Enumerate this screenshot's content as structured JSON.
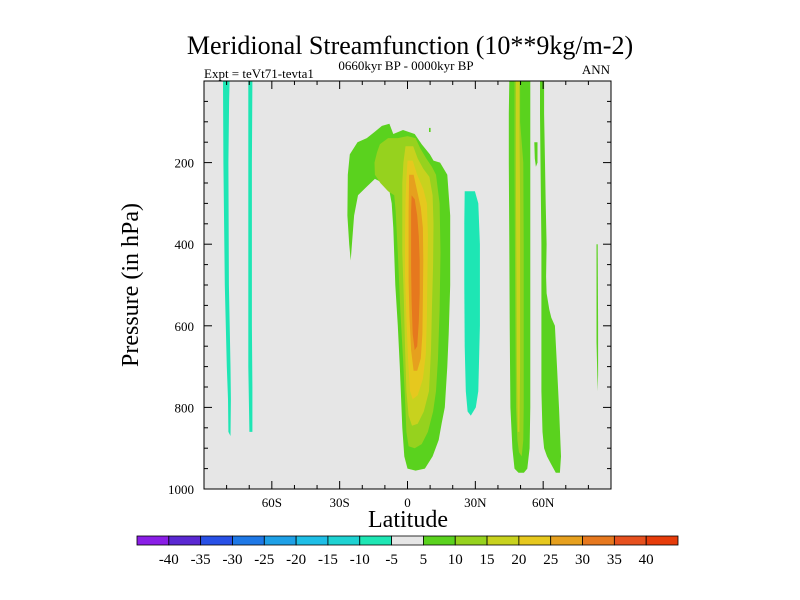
{
  "chart_data": {
    "type": "contour",
    "title": "Meridional Streamfunction (10**9kg/m-2)",
    "left_subtitle": "Expt = teVt71-tevta1",
    "center_subtitle": "0660kyr BP - 0000kyr BP",
    "right_subtitle": "ANN",
    "xlabel": "Latitude",
    "ylabel": "Pressure (in hPa)",
    "xlim": [
      -90,
      90
    ],
    "ylim": [
      1000,
      0
    ],
    "x_ticks": [
      {
        "value": -60,
        "label": "60S"
      },
      {
        "value": -30,
        "label": "30S"
      },
      {
        "value": 0,
        "label": "0"
      },
      {
        "value": 30,
        "label": "30N"
      },
      {
        "value": 60,
        "label": "60N"
      }
    ],
    "y_ticks": [
      {
        "value": 200,
        "label": "200"
      },
      {
        "value": 400,
        "label": "400"
      },
      {
        "value": 600,
        "label": "600"
      },
      {
        "value": 800,
        "label": "800"
      },
      {
        "value": 1000,
        "label": "1000"
      }
    ],
    "background_color": "#e6e6e6",
    "colorbar": {
      "boundaries": [
        -40,
        -35,
        -30,
        -25,
        -20,
        -15,
        -10,
        -5,
        5,
        10,
        15,
        20,
        25,
        30,
        35,
        40
      ],
      "labels": [
        "-40",
        "-35",
        "-30",
        "-25",
        "-20",
        "-15",
        "-10",
        "-5",
        "5",
        "10",
        "15",
        "20",
        "25",
        "30",
        "35",
        "40"
      ],
      "colors": [
        "#8a1ee6",
        "#5a28d2",
        "#2850e6",
        "#1e78e6",
        "#1ea0e6",
        "#1ebee6",
        "#1ed2d2",
        "#1ee6b4",
        "#e6e6e6",
        "#5ad21e",
        "#96d21e",
        "#c8d21e",
        "#e6c81e",
        "#e6a01e",
        "#e6781e",
        "#e6501e",
        "#e63c0a"
      ]
    },
    "regions": [
      {
        "level": "-10 to -5",
        "color": "#1ee6b4",
        "points": [
          [
            -81.6,
            0
          ],
          [
            -78.7,
            0
          ],
          [
            -78.9,
            50
          ],
          [
            -79.2,
            200
          ],
          [
            -79,
            500
          ],
          [
            -78.3,
            700
          ],
          [
            -78.1,
            780
          ],
          [
            -78.3,
            870
          ],
          [
            -79.2,
            860
          ],
          [
            -79.4,
            780
          ],
          [
            -79.9,
            700
          ],
          [
            -80.8,
            500
          ],
          [
            -81.4,
            200
          ]
        ]
      },
      {
        "level": "-10 to -5",
        "color": "#1ee6b4",
        "points": [
          [
            -70.4,
            0
          ],
          [
            -68.6,
            0
          ],
          [
            -68.8,
            200
          ],
          [
            -68.8,
            600
          ],
          [
            -68.6,
            750
          ],
          [
            -68.6,
            860
          ],
          [
            -69.9,
            860
          ],
          [
            -70.4,
            700
          ],
          [
            -70.4,
            400
          ]
        ]
      },
      {
        "level": "-10 to -5",
        "color": "#1ee6b4",
        "points": [
          [
            25.3,
            270
          ],
          [
            29.8,
            270
          ],
          [
            31.3,
            300
          ],
          [
            32,
            400
          ],
          [
            32,
            600
          ],
          [
            31.3,
            760
          ],
          [
            30.2,
            800
          ],
          [
            28,
            820
          ],
          [
            26.6,
            810
          ],
          [
            25.8,
            760
          ],
          [
            25.3,
            650
          ],
          [
            25.1,
            500
          ],
          [
            25.1,
            350
          ]
        ]
      },
      {
        "level": "5 to 10",
        "color": "#5ad21e",
        "points": [
          [
            -25.5,
            180
          ],
          [
            -22.1,
            150
          ],
          [
            -18,
            140
          ],
          [
            -14.6,
            125
          ],
          [
            -11.3,
            110
          ],
          [
            -8,
            105
          ],
          [
            -6.3,
            130
          ],
          [
            -2,
            120
          ],
          [
            3.2,
            130
          ],
          [
            6.3,
            155
          ],
          [
            9.9,
            180
          ],
          [
            11.5,
            195
          ],
          [
            14.4,
            200
          ],
          [
            17.6,
            230
          ],
          [
            18.9,
            330
          ],
          [
            18.9,
            500
          ],
          [
            18.2,
            620
          ],
          [
            17.6,
            700
          ],
          [
            16.5,
            800
          ],
          [
            15.1,
            840
          ],
          [
            13.8,
            880
          ],
          [
            11.1,
            920
          ],
          [
            7.7,
            950
          ],
          [
            3.6,
            955
          ],
          [
            0,
            950
          ],
          [
            -1.4,
            920
          ],
          [
            -2.3,
            850
          ],
          [
            -3.4,
            700
          ],
          [
            -4.3,
            600
          ],
          [
            -5.4,
            500
          ],
          [
            -6.3,
            360
          ],
          [
            -7,
            300
          ],
          [
            -8.3,
            260
          ],
          [
            -10.8,
            250
          ],
          [
            -14.4,
            240
          ],
          [
            -18.2,
            260
          ],
          [
            -21.9,
            280
          ],
          [
            -23.6,
            330
          ],
          [
            -25.1,
            440
          ],
          [
            -25.8,
            400
          ],
          [
            -26.6,
            330
          ],
          [
            -26.4,
            230
          ]
        ]
      },
      {
        "level": "10 to 15",
        "color": "#96d21e",
        "points": [
          [
            -12.2,
            155
          ],
          [
            -8.6,
            140
          ],
          [
            -4.3,
            140
          ],
          [
            0,
            135
          ],
          [
            3.6,
            140
          ],
          [
            5.6,
            165
          ],
          [
            8.3,
            190
          ],
          [
            10.8,
            210
          ],
          [
            12.6,
            230
          ],
          [
            14.2,
            300
          ],
          [
            14.6,
            420
          ],
          [
            14.2,
            560
          ],
          [
            13.5,
            680
          ],
          [
            12.6,
            760
          ],
          [
            11.3,
            810
          ],
          [
            9,
            860
          ],
          [
            6.3,
            890
          ],
          [
            3.2,
            900
          ],
          [
            0.5,
            895
          ],
          [
            -0.5,
            860
          ],
          [
            -1.1,
            780
          ],
          [
            -2,
            680
          ],
          [
            -3.2,
            560
          ],
          [
            -4.3,
            420
          ],
          [
            -5.2,
            320
          ],
          [
            -5.9,
            280
          ],
          [
            -8.6,
            270
          ],
          [
            -12,
            250
          ],
          [
            -14.4,
            230
          ],
          [
            -14.6,
            200
          ],
          [
            -13.5,
            175
          ]
        ]
      },
      {
        "level": "15 to 20",
        "color": "#c8d21e",
        "points": [
          [
            -0.9,
            160
          ],
          [
            2.5,
            160
          ],
          [
            4.5,
            190
          ],
          [
            7,
            215
          ],
          [
            9.7,
            235
          ],
          [
            11.1,
            280
          ],
          [
            11.5,
            350
          ],
          [
            11.3,
            450
          ],
          [
            10.8,
            560
          ],
          [
            10.4,
            660
          ],
          [
            9.5,
            760
          ],
          [
            7.2,
            810
          ],
          [
            4.5,
            840
          ],
          [
            2,
            845
          ],
          [
            0.5,
            820
          ],
          [
            -0.5,
            760
          ],
          [
            -1.1,
            650
          ],
          [
            -1.6,
            540
          ],
          [
            -2.3,
            420
          ],
          [
            -2.3,
            320
          ],
          [
            -2.3,
            250
          ],
          [
            -1.8,
            200
          ]
        ]
      },
      {
        "level": "20 to 25",
        "color": "#e6c81e",
        "points": [
          [
            0,
            195
          ],
          [
            2.3,
            195
          ],
          [
            4.3,
            230
          ],
          [
            7,
            265
          ],
          [
            8.6,
            300
          ],
          [
            9,
            380
          ],
          [
            8.8,
            480
          ],
          [
            8.6,
            580
          ],
          [
            8.1,
            670
          ],
          [
            6.8,
            730
          ],
          [
            4.5,
            770
          ],
          [
            2.3,
            780
          ],
          [
            1.1,
            760
          ],
          [
            0.2,
            680
          ],
          [
            -0.5,
            580
          ],
          [
            -1.1,
            480
          ],
          [
            -1.1,
            380
          ],
          [
            -0.9,
            290
          ],
          [
            -0.5,
            240
          ]
        ]
      },
      {
        "level": "25 to 30",
        "color": "#e6a01e",
        "points": [
          [
            0.7,
            230
          ],
          [
            2.7,
            230
          ],
          [
            4.3,
            270
          ],
          [
            5.9,
            310
          ],
          [
            6.8,
            360
          ],
          [
            7,
            440
          ],
          [
            6.8,
            530
          ],
          [
            6.6,
            620
          ],
          [
            5.9,
            680
          ],
          [
            4.3,
            710
          ],
          [
            2.7,
            710
          ],
          [
            1.6,
            660
          ],
          [
            0.9,
            580
          ],
          [
            0.5,
            490
          ],
          [
            0.5,
            400
          ],
          [
            0.5,
            320
          ]
        ]
      },
      {
        "level": "30 to 35",
        "color": "#e6781e",
        "points": [
          [
            1.8,
            280
          ],
          [
            3.2,
            290
          ],
          [
            4.3,
            330
          ],
          [
            5,
            380
          ],
          [
            5.4,
            440
          ],
          [
            5.4,
            520
          ],
          [
            5,
            590
          ],
          [
            4.3,
            650
          ],
          [
            3.2,
            660
          ],
          [
            2.3,
            620
          ],
          [
            1.8,
            540
          ],
          [
            1.6,
            460
          ],
          [
            1.6,
            380
          ],
          [
            1.6,
            320
          ]
        ]
      },
      {
        "level": "5 to 10",
        "color": "#5ad21e",
        "points": [
          [
            45,
            0
          ],
          [
            54.3,
            0
          ],
          [
            54.3,
            80
          ],
          [
            54.3,
            300
          ],
          [
            54.3,
            600
          ],
          [
            54.3,
            800
          ],
          [
            54,
            900
          ],
          [
            53,
            950
          ],
          [
            51.5,
            960
          ],
          [
            49.1,
            960
          ],
          [
            47.3,
            950
          ],
          [
            46.4,
            900
          ],
          [
            45.5,
            800
          ],
          [
            45.2,
            600
          ],
          [
            45,
            400
          ],
          [
            44.8,
            200
          ],
          [
            44.8,
            80
          ]
        ]
      },
      {
        "level": "10 to 15",
        "color": "#96d21e",
        "points": [
          [
            47.3,
            0
          ],
          [
            49.8,
            0
          ],
          [
            49.8,
            100
          ],
          [
            51.2,
            200
          ],
          [
            51.4,
            400
          ],
          [
            51.4,
            600
          ],
          [
            51.4,
            800
          ],
          [
            51.2,
            880
          ],
          [
            50.5,
            920
          ],
          [
            49.3,
            910
          ],
          [
            48.6,
            880
          ],
          [
            48,
            800
          ],
          [
            47.7,
            600
          ],
          [
            47.5,
            400
          ],
          [
            47.3,
            200
          ],
          [
            47.3,
            80
          ]
        ]
      },
      {
        "level": "15 to 20",
        "color": "#c8d21e",
        "points": [
          [
            48,
            0
          ],
          [
            49.5,
            0
          ],
          [
            49.5,
            100
          ],
          [
            49.8,
            300
          ],
          [
            49.8,
            500
          ],
          [
            49.8,
            700
          ],
          [
            49.5,
            860
          ],
          [
            48.8,
            860
          ],
          [
            48.4,
            700
          ],
          [
            48.2,
            500
          ],
          [
            48,
            300
          ],
          [
            48,
            100
          ]
        ]
      },
      {
        "level": "5 to 10",
        "color": "#5ad21e",
        "points": [
          [
            58.6,
            0
          ],
          [
            60.4,
            0
          ],
          [
            60.4,
            80
          ],
          [
            60.8,
            200
          ],
          [
            61.1,
            300
          ],
          [
            61.5,
            400
          ],
          [
            61.3,
            480
          ],
          [
            61.5,
            520
          ],
          [
            62.7,
            560
          ],
          [
            63.6,
            580
          ],
          [
            65.2,
            600
          ],
          [
            66.1,
            700
          ],
          [
            67,
            800
          ],
          [
            67.9,
            920
          ],
          [
            67.4,
            960
          ],
          [
            65.6,
            960
          ],
          [
            63.6,
            940
          ],
          [
            61.7,
            920
          ],
          [
            60.4,
            900
          ],
          [
            59.7,
            860
          ],
          [
            59.2,
            760
          ],
          [
            59.2,
            600
          ],
          [
            59.2,
            400
          ],
          [
            58.8,
            200
          ],
          [
            58.6,
            80
          ]
        ]
      },
      {
        "level": "5 to 10",
        "color": "#5ad21e",
        "points": [
          [
            56.1,
            150
          ],
          [
            57.5,
            150
          ],
          [
            57.5,
            200
          ],
          [
            56.8,
            210
          ],
          [
            56.3,
            190
          ]
        ]
      },
      {
        "level": "5 to 10",
        "color": "#5ad21e",
        "points": [
          [
            83.6,
            400
          ],
          [
            84.1,
            400
          ],
          [
            84.3,
            600
          ],
          [
            84.3,
            720
          ],
          [
            84.1,
            760
          ],
          [
            83.6,
            640
          ]
        ]
      },
      {
        "level": "5 to 10",
        "color": "#5ad21e",
        "points": [
          [
            9.5,
            115
          ],
          [
            10.2,
            115
          ],
          [
            10.2,
            125
          ],
          [
            9.5,
            125
          ]
        ]
      }
    ]
  }
}
